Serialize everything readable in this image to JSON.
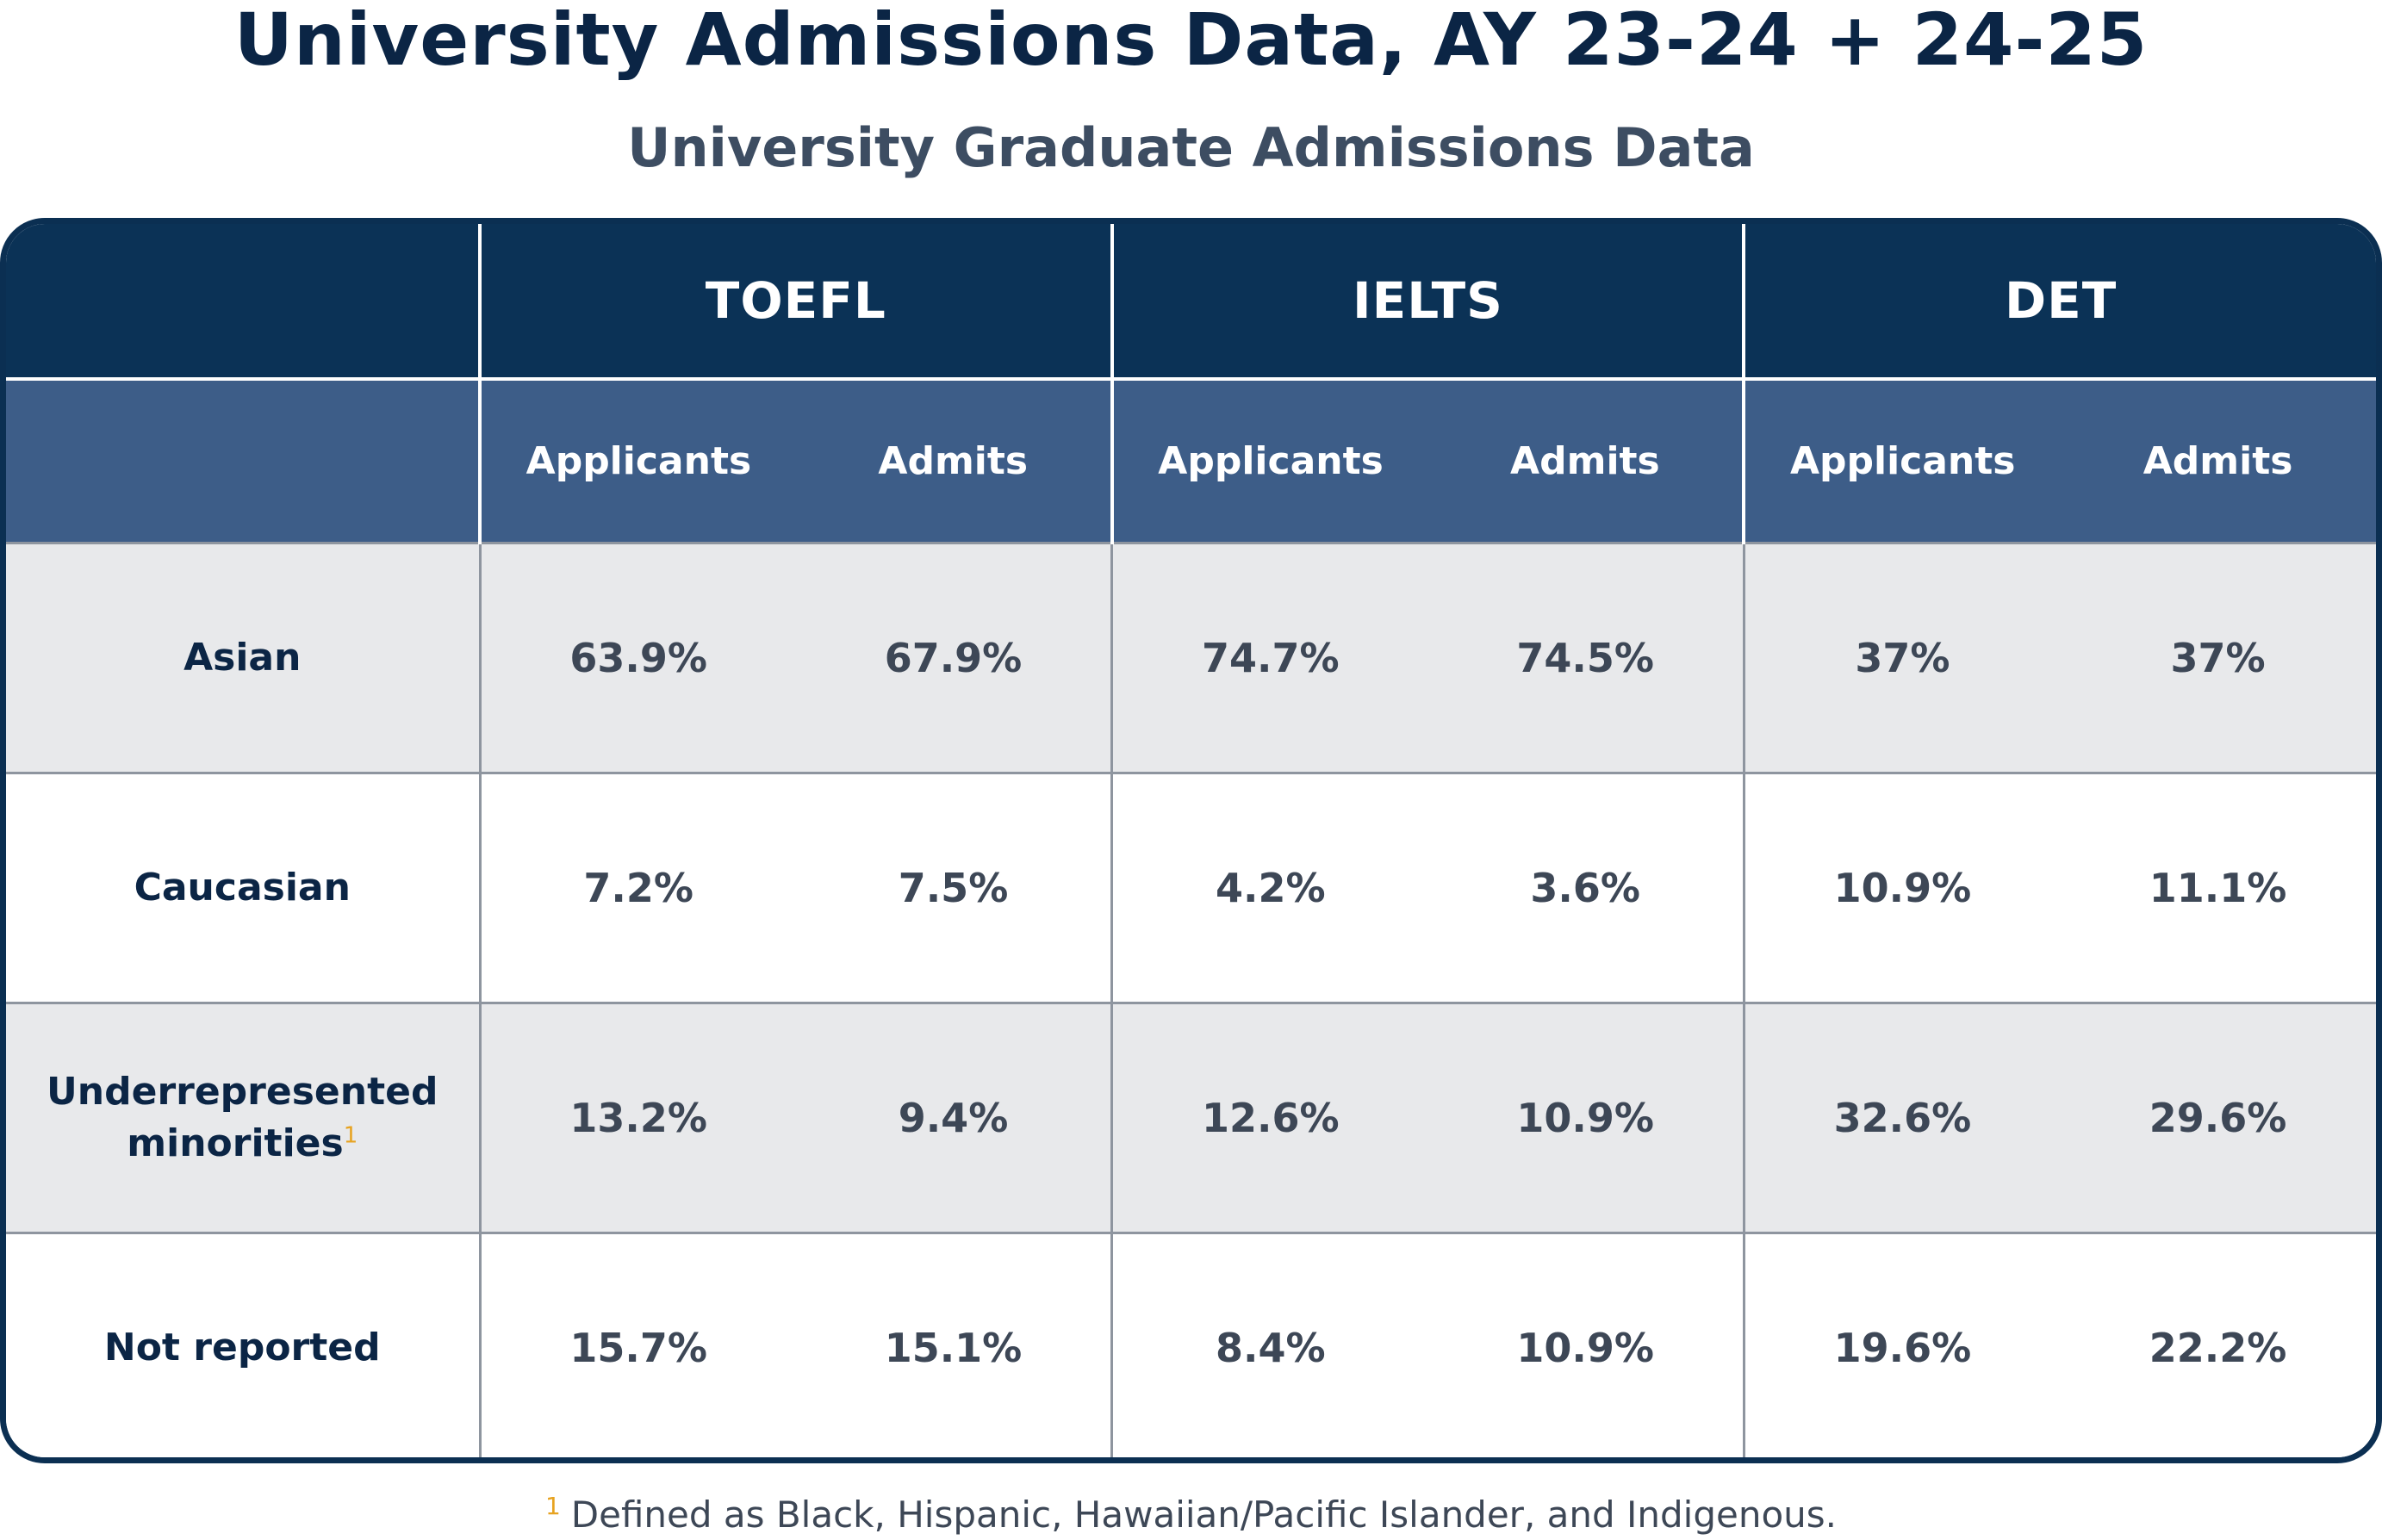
{
  "title": "University Admissions Data, AY 23-24 + 24-25",
  "subtitle": "University Graduate Admissions Data",
  "table": {
    "groups": [
      "TOEFL",
      "IELTS",
      "DET"
    ],
    "subheaders": [
      "Applicants",
      "Admits"
    ],
    "rows": [
      {
        "label": "Asian",
        "label_line2": "",
        "footnote_mark": "",
        "values": [
          "63.9%",
          "67.9%",
          "74.7%",
          "74.5%",
          "37%",
          "37%"
        ]
      },
      {
        "label": "Caucasian",
        "label_line2": "",
        "footnote_mark": "",
        "values": [
          "7.2%",
          "7.5%",
          "4.2%",
          "3.6%",
          "10.9%",
          "11.1%"
        ]
      },
      {
        "label": "Underrepresented",
        "label_line2": "minorities",
        "footnote_mark": "1",
        "values": [
          "13.2%",
          "9.4%",
          "12.6%",
          "10.9%",
          "32.6%",
          "29.6%"
        ]
      },
      {
        "label": "Not reported",
        "label_line2": "",
        "footnote_mark": "",
        "values": [
          "15.7%",
          "15.1%",
          "8.4%",
          "10.9%",
          "19.6%",
          "22.2%"
        ]
      }
    ]
  },
  "footnote": {
    "mark": "1",
    "text": "Defined as Black, Hispanic, Hawaiian/Pacific Islander, and Indigenous."
  },
  "colors": {
    "title": "#0b2545",
    "header_dark": "#0b3256",
    "header_mid": "#3d5d88",
    "row_shaded": "#e8e9eb",
    "footnote_mark": "#e7a321"
  }
}
